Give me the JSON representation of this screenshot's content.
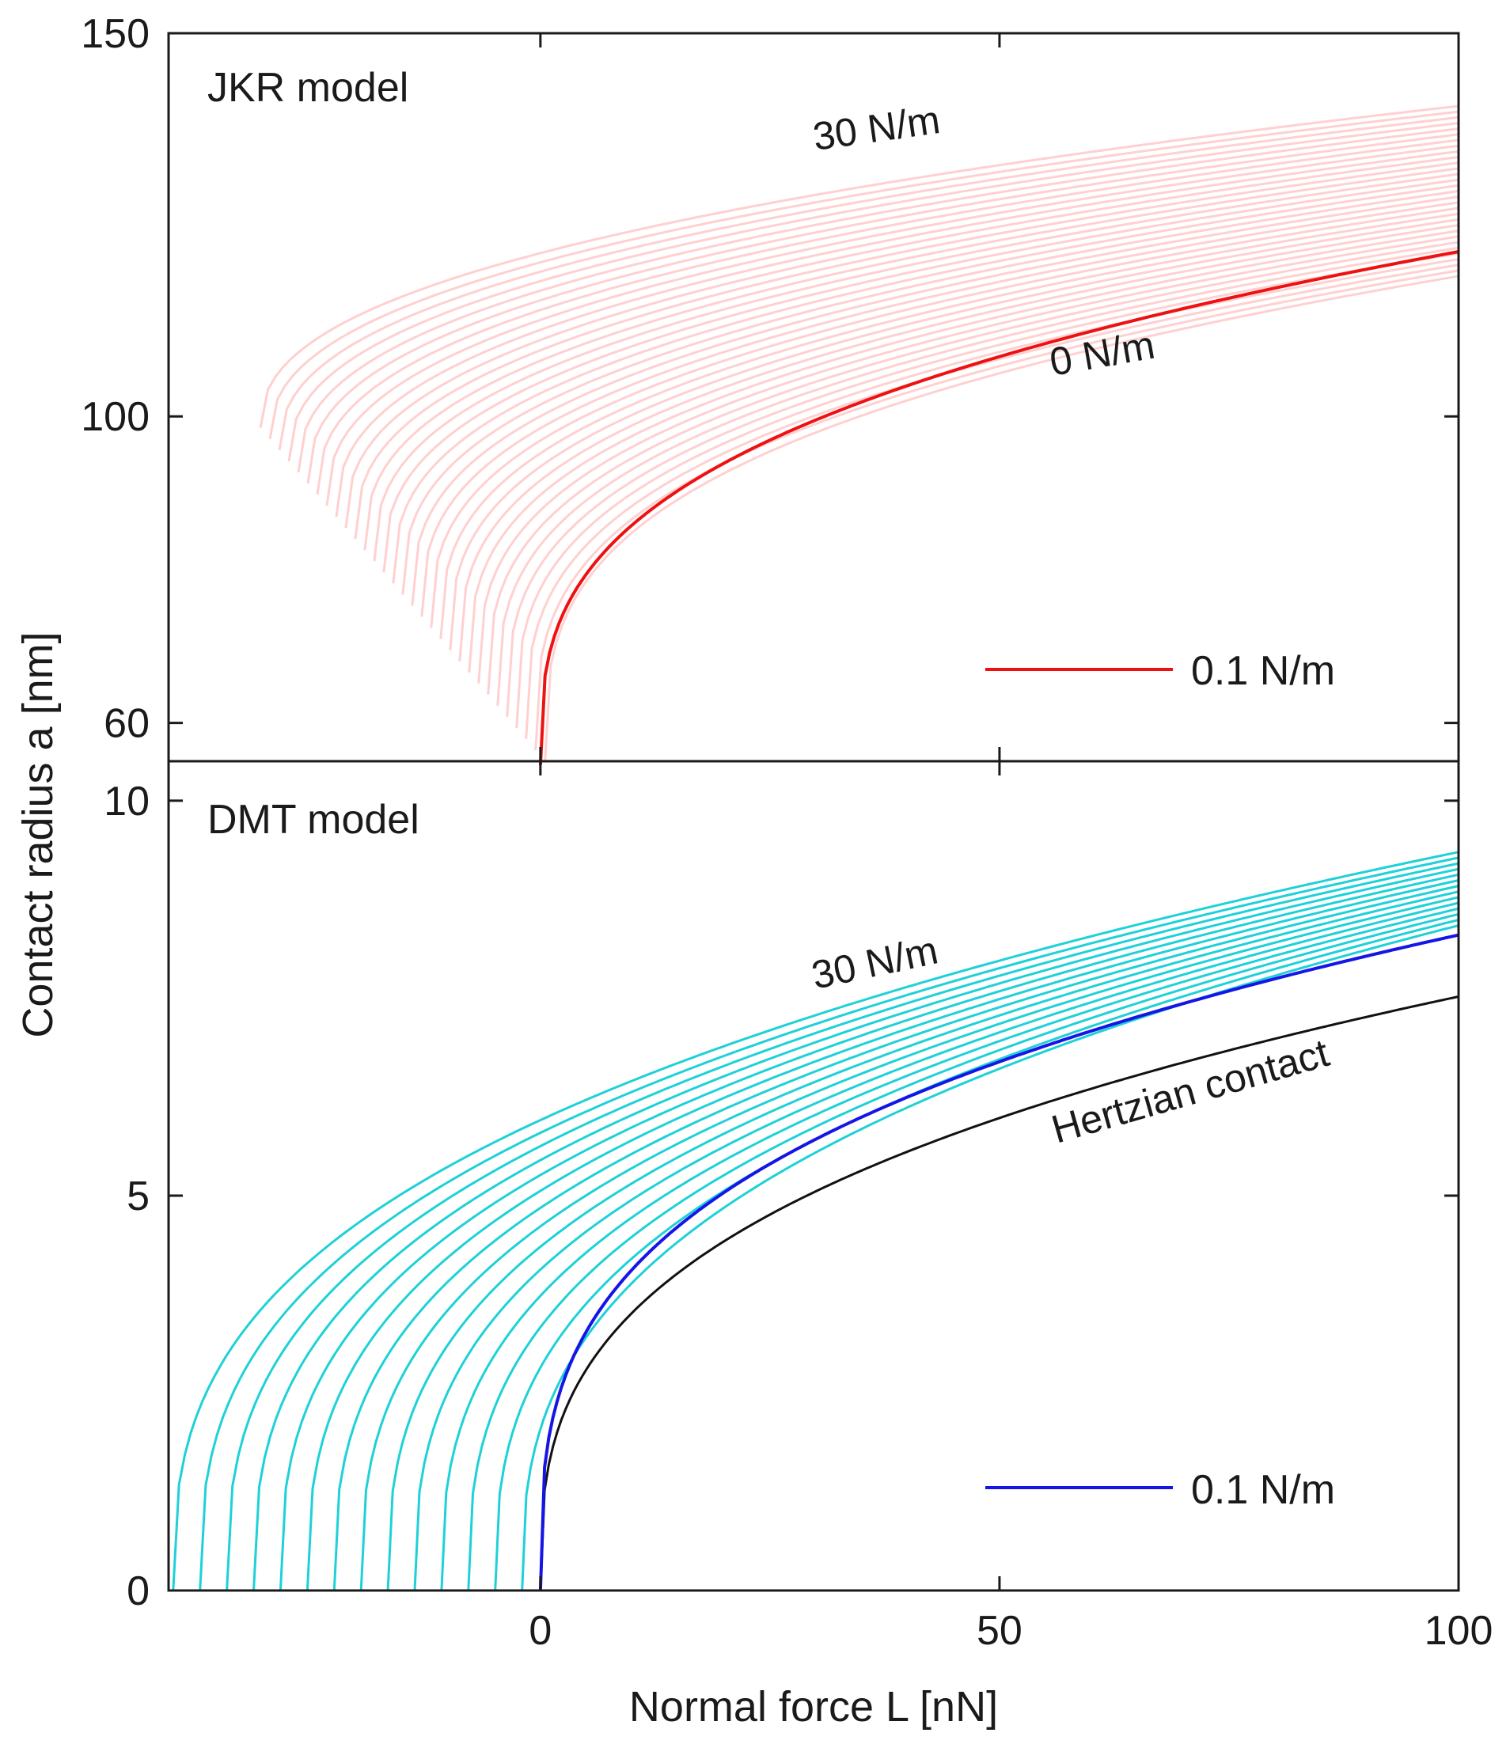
{
  "chart_data": [
    {
      "type": "line",
      "panel": "top",
      "title": "JKR model",
      "xlabel": "Normal force L [nN]",
      "ylabel": "Contact radius a [nm]",
      "xlim": [
        -40.5,
        100
      ],
      "ylim": [
        55,
        150
      ],
      "yticks": [
        60,
        100,
        150
      ],
      "ytick_labels": [
        "60",
        "100",
        "150"
      ],
      "xticks": [
        0,
        50,
        100
      ],
      "grid": false,
      "colors": {
        "family": "#ffd0d0",
        "highlight": "#ee1111"
      },
      "family": {
        "label_high": "30 N/m",
        "label_low": "0 N/m",
        "count": 31,
        "start": {
          "L": [
            -30.5,
            0.5
          ],
          "a": [
            98.5,
            55.0
          ]
        },
        "end_a_at_L100": [
          140.5,
          118.3
        ]
      },
      "highlight": {
        "start": {
          "L": 0,
          "a": 54.5
        },
        "end": {
          "L": 100,
          "a": 121.5
        }
      },
      "annotations": [
        {
          "text": "30 N/m",
          "near": [
            48,
            135
          ]
        },
        {
          "text": "0 N/m",
          "near": [
            72,
            108
          ]
        }
      ],
      "legend": {
        "label": "0.1 N/m",
        "location": "bottom-right"
      }
    },
    {
      "type": "line",
      "panel": "bottom",
      "title": "DMT model",
      "xlabel": "Normal force L [nN]",
      "ylabel": "Contact radius a [nm]",
      "xlim": [
        -40.5,
        100
      ],
      "ylim": [
        0,
        10.5
      ],
      "yticks": [
        0,
        5,
        10
      ],
      "ytick_labels": [
        "0",
        "5",
        "10"
      ],
      "xticks": [
        0,
        50,
        100
      ],
      "xtick_labels": [
        "0",
        "50",
        "100"
      ],
      "grid": false,
      "colors": {
        "family": "#1ed1d8",
        "highlight": "#1515e6",
        "hertz": "#111111"
      },
      "family": {
        "label_high": "30 N/m",
        "count": 14,
        "adhesion_range": [
          -40.0,
          -2.0
        ],
        "end_a_at_L100": [
          9.35,
          8.42
        ],
        "hertz_end_a": 7.52
      },
      "highlight": {
        "adhesion": 0,
        "end_a": 8.3
      },
      "annotations": [
        {
          "text": "30 N/m",
          "near": [
            45,
            8.5
          ]
        },
        {
          "text": "Hertzian contact",
          "near": [
            82,
            6.8
          ]
        }
      ],
      "legend": {
        "label": "0.1 N/m",
        "location": "bottom-right"
      }
    }
  ]
}
